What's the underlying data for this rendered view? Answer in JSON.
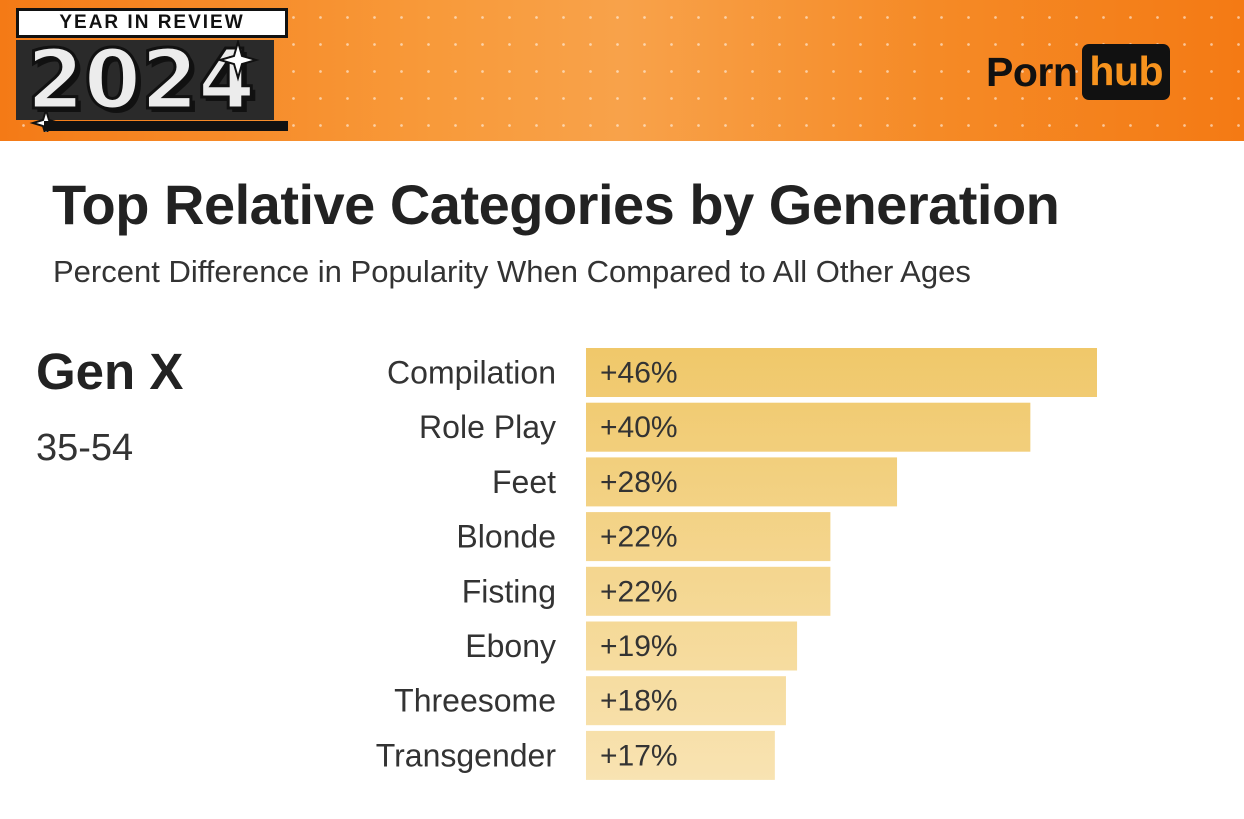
{
  "banner": {
    "badge_top": "YEAR IN REVIEW",
    "badge_year": "2024",
    "logo_left": "Porn",
    "logo_right": "hub",
    "colors": {
      "orange": "#f47a16",
      "logo_accent": "#f7931e",
      "dark": "#111111"
    }
  },
  "header": {
    "title": "Top Relative Categories by Generation",
    "subtitle": "Percent Difference in Popularity When Compared to All Other Ages"
  },
  "generation": {
    "name": "Gen X",
    "age_range": "35-54"
  },
  "chart_data": {
    "type": "bar",
    "orientation": "horizontal",
    "categories": [
      "Compilation",
      "Role Play",
      "Feet",
      "Blonde",
      "Fisting",
      "Ebony",
      "Threesome",
      "Transgender"
    ],
    "values": [
      46,
      40,
      28,
      22,
      22,
      19,
      18,
      17
    ],
    "value_labels": [
      "+46%",
      "+40%",
      "+28%",
      "+22%",
      "+22%",
      "+19%",
      "+18%",
      "+17%"
    ],
    "title": "Top Relative Categories by Generation",
    "subtitle": "Percent Difference in Popularity When Compared to All Other Ages",
    "xlim": [
      0,
      46
    ],
    "grid": false,
    "colors": {
      "bar_top": "#f0c86a",
      "bar_bottom": "#f8e3b2"
    }
  }
}
